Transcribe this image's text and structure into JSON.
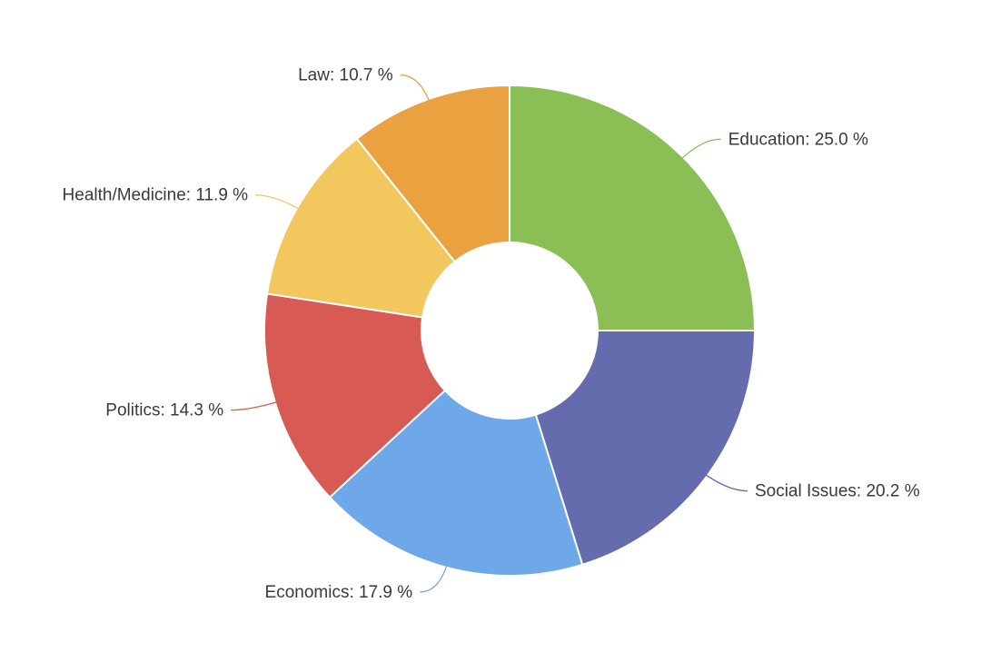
{
  "chart_data": {
    "type": "pie",
    "donut": true,
    "title": "",
    "slices": [
      {
        "name": "Education",
        "value": 25.0,
        "label": "Education: 25.0 %",
        "color": "#8bbf56"
      },
      {
        "name": "Social Issues",
        "value": 20.2,
        "label": "Social Issues: 20.2 %",
        "color": "#656cad"
      },
      {
        "name": "Economics",
        "value": 17.9,
        "label": "Economics: 17.9 %",
        "color": "#6ea8e8"
      },
      {
        "name": "Politics",
        "value": 14.3,
        "label": "Politics: 14.3 %",
        "color": "#d85a54"
      },
      {
        "name": "Health/Medicine",
        "value": 11.9,
        "label": "Health/Medicine: 11.9 %",
        "color": "#f2c75e"
      },
      {
        "name": "Law",
        "value": 10.7,
        "label": "Law: 10.7 %",
        "color": "#e9a23f"
      }
    ],
    "legend": "none"
  }
}
